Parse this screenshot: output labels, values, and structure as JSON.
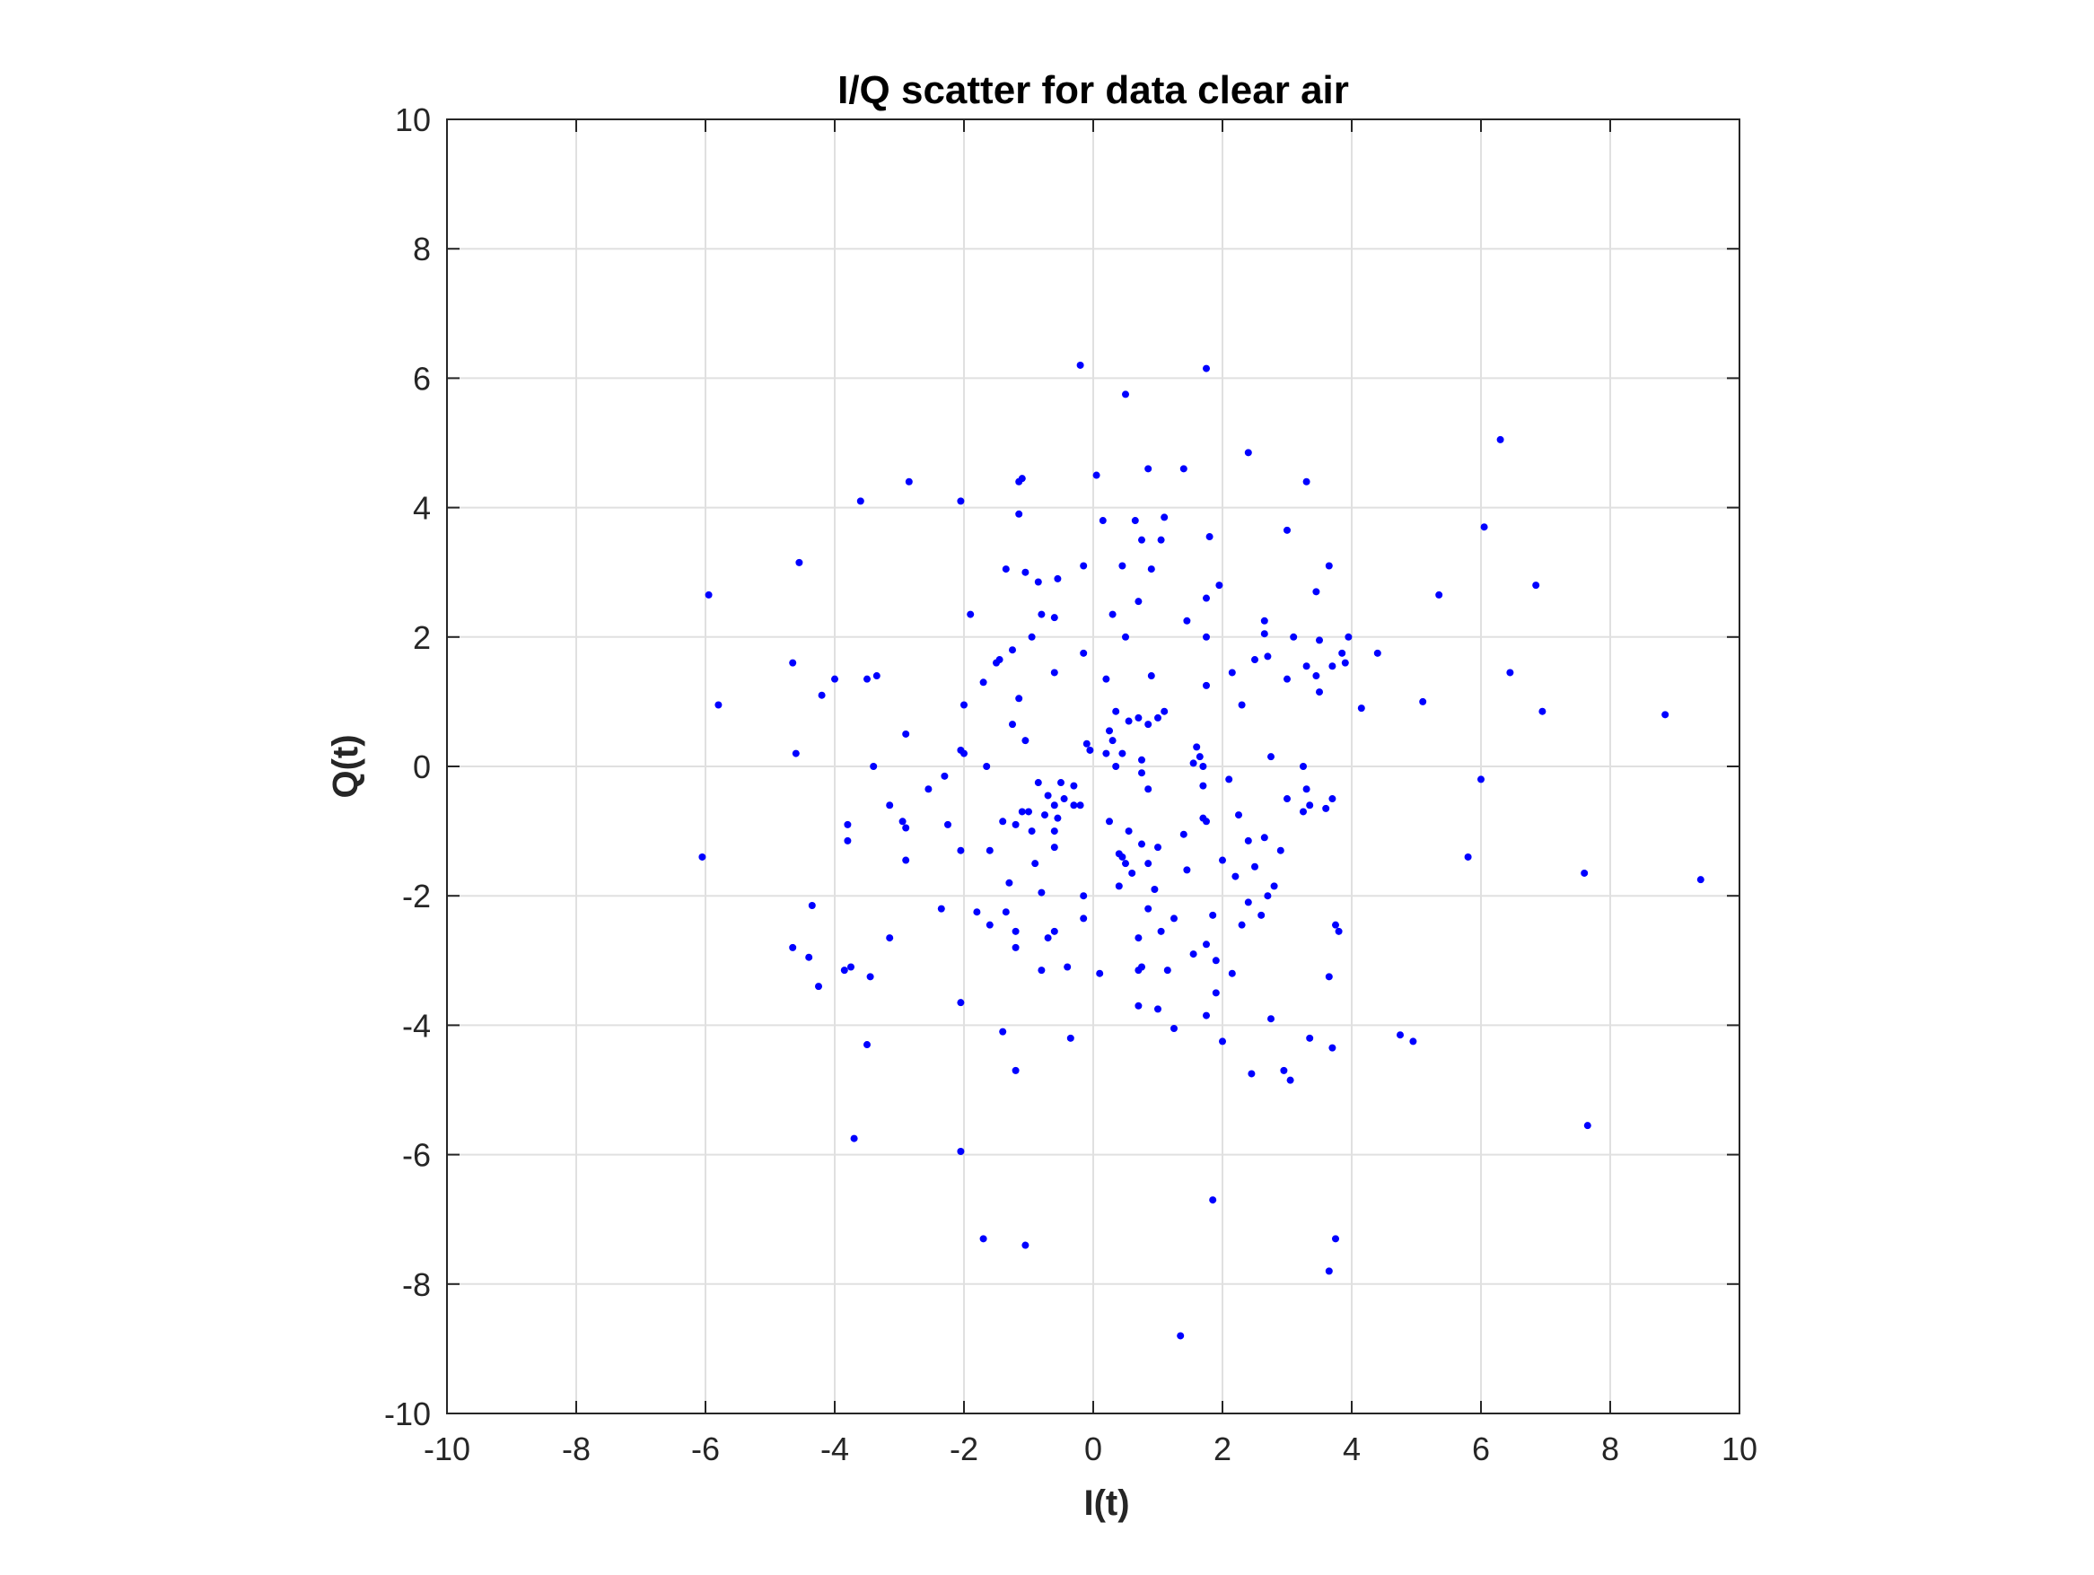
{
  "chart_data": {
    "type": "scatter",
    "title": "I/Q scatter for data clear air",
    "xlabel": "I(t)",
    "ylabel": "Q(t)",
    "xlim": [
      -10,
      10
    ],
    "ylim": [
      -10,
      10
    ],
    "xticks": [
      -10,
      -8,
      -6,
      -4,
      -2,
      0,
      2,
      4,
      6,
      8,
      10
    ],
    "yticks": [
      -10,
      -8,
      -6,
      -4,
      -2,
      0,
      2,
      4,
      6,
      8,
      10
    ],
    "grid": true,
    "legend": "none",
    "marker_color": "#0000ff",
    "grid_color": "#e0e0e0",
    "axis_color": "#262626",
    "series": [
      {
        "points": [
          [
            -0.2,
            6.2
          ],
          [
            1.75,
            6.15
          ],
          [
            0.5,
            5.75
          ],
          [
            6.3,
            5.05
          ],
          [
            2.4,
            4.85
          ],
          [
            -1.1,
            4.45
          ],
          [
            -1.15,
            4.4
          ],
          [
            0.85,
            4.6
          ],
          [
            1.4,
            4.6
          ],
          [
            0.05,
            4.5
          ],
          [
            3.3,
            4.4
          ],
          [
            -2.85,
            4.4
          ],
          [
            -2.05,
            4.1
          ],
          [
            -3.6,
            4.1
          ],
          [
            -1.15,
            3.9
          ],
          [
            0.15,
            3.8
          ],
          [
            0.65,
            3.8
          ],
          [
            1.1,
            3.85
          ],
          [
            6.05,
            3.7
          ],
          [
            3.0,
            3.65
          ],
          [
            1.8,
            3.55
          ],
          [
            0.75,
            3.5
          ],
          [
            1.05,
            3.5
          ],
          [
            -4.55,
            3.15
          ],
          [
            -1.35,
            3.05
          ],
          [
            -1.05,
            3.0
          ],
          [
            -0.55,
            2.9
          ],
          [
            -0.85,
            2.85
          ],
          [
            0.45,
            3.1
          ],
          [
            0.9,
            3.05
          ],
          [
            -0.15,
            3.1
          ],
          [
            3.65,
            3.1
          ],
          [
            1.95,
            2.8
          ],
          [
            6.85,
            2.8
          ],
          [
            -5.95,
            2.65
          ],
          [
            3.45,
            2.7
          ],
          [
            5.35,
            2.65
          ],
          [
            0.7,
            2.55
          ],
          [
            1.75,
            2.6
          ],
          [
            -1.9,
            2.35
          ],
          [
            -0.8,
            2.35
          ],
          [
            -0.6,
            2.3
          ],
          [
            0.3,
            2.35
          ],
          [
            1.45,
            2.25
          ],
          [
            2.65,
            2.25
          ],
          [
            -0.95,
            2.0
          ],
          [
            0.5,
            2.0
          ],
          [
            1.75,
            2.0
          ],
          [
            2.65,
            2.05
          ],
          [
            3.1,
            2.0
          ],
          [
            3.5,
            1.95
          ],
          [
            3.95,
            2.0
          ],
          [
            -1.25,
            1.8
          ],
          [
            -0.15,
            1.75
          ],
          [
            2.7,
            1.7
          ],
          [
            4.4,
            1.75
          ],
          [
            -1.45,
            1.65
          ],
          [
            -1.5,
            1.6
          ],
          [
            2.5,
            1.65
          ],
          [
            3.3,
            1.55
          ],
          [
            3.7,
            1.55
          ],
          [
            3.9,
            1.6
          ],
          [
            3.85,
            1.75
          ],
          [
            -4.65,
            1.6
          ],
          [
            2.15,
            1.45
          ],
          [
            -0.6,
            1.45
          ],
          [
            -3.5,
            1.35
          ],
          [
            -3.35,
            1.4
          ],
          [
            0.9,
            1.4
          ],
          [
            6.45,
            1.45
          ],
          [
            -4.0,
            1.35
          ],
          [
            0.2,
            1.35
          ],
          [
            3.0,
            1.35
          ],
          [
            3.45,
            1.4
          ],
          [
            -1.7,
            1.3
          ],
          [
            1.75,
            1.25
          ],
          [
            3.5,
            1.15
          ],
          [
            -4.2,
            1.1
          ],
          [
            -1.15,
            1.05
          ],
          [
            2.3,
            0.95
          ],
          [
            -5.8,
            0.95
          ],
          [
            -2.0,
            0.95
          ],
          [
            5.1,
            1.0
          ],
          [
            4.15,
            0.9
          ],
          [
            6.95,
            0.85
          ],
          [
            8.85,
            0.8
          ],
          [
            1.1,
            0.85
          ],
          [
            0.35,
            0.85
          ],
          [
            1.0,
            0.75
          ],
          [
            0.55,
            0.7
          ],
          [
            0.7,
            0.75
          ],
          [
            -1.25,
            0.65
          ],
          [
            0.85,
            0.65
          ],
          [
            0.25,
            0.55
          ],
          [
            -2.9,
            0.5
          ],
          [
            0.3,
            0.4
          ],
          [
            -1.05,
            0.4
          ],
          [
            -0.1,
            0.35
          ],
          [
            1.6,
            0.3
          ],
          [
            -2.05,
            0.25
          ],
          [
            -0.05,
            0.25
          ],
          [
            0.2,
            0.2
          ],
          [
            0.45,
            0.2
          ],
          [
            1.65,
            0.15
          ],
          [
            -2.0,
            0.2
          ],
          [
            -4.6,
            0.2
          ],
          [
            2.75,
            0.15
          ],
          [
            1.55,
            0.05
          ],
          [
            0.75,
            0.1
          ],
          [
            1.7,
            0.0
          ],
          [
            -3.4,
            0.0
          ],
          [
            -1.65,
            0.0
          ],
          [
            0.35,
            0.0
          ],
          [
            3.25,
            0.0
          ],
          [
            0.75,
            -0.1
          ],
          [
            -2.3,
            -0.15
          ],
          [
            2.1,
            -0.2
          ],
          [
            6.0,
            -0.2
          ],
          [
            -0.85,
            -0.25
          ],
          [
            -0.5,
            -0.25
          ],
          [
            -0.3,
            -0.3
          ],
          [
            1.7,
            -0.3
          ],
          [
            3.3,
            -0.35
          ],
          [
            -2.55,
            -0.35
          ],
          [
            0.85,
            -0.35
          ],
          [
            -0.7,
            -0.45
          ],
          [
            -0.45,
            -0.5
          ],
          [
            3.0,
            -0.5
          ],
          [
            3.7,
            -0.5
          ],
          [
            -0.6,
            -0.6
          ],
          [
            -0.3,
            -0.6
          ],
          [
            3.35,
            -0.6
          ],
          [
            -3.15,
            -0.6
          ],
          [
            -0.2,
            -0.6
          ],
          [
            3.25,
            -0.7
          ],
          [
            3.6,
            -0.65
          ],
          [
            -1.0,
            -0.7
          ],
          [
            -0.75,
            -0.75
          ],
          [
            -1.1,
            -0.7
          ],
          [
            2.25,
            -0.75
          ],
          [
            -0.55,
            -0.8
          ],
          [
            1.7,
            -0.8
          ],
          [
            1.75,
            -0.85
          ],
          [
            -2.95,
            -0.85
          ],
          [
            -1.4,
            -0.85
          ],
          [
            0.25,
            -0.85
          ],
          [
            -3.8,
            -0.9
          ],
          [
            -2.9,
            -0.95
          ],
          [
            -2.25,
            -0.9
          ],
          [
            -1.2,
            -0.9
          ],
          [
            -0.95,
            -1.0
          ],
          [
            -0.6,
            -1.0
          ],
          [
            0.55,
            -1.0
          ],
          [
            1.4,
            -1.05
          ],
          [
            2.65,
            -1.1
          ],
          [
            2.4,
            -1.15
          ],
          [
            -3.8,
            -1.15
          ],
          [
            0.75,
            -1.2
          ],
          [
            1.0,
            -1.25
          ],
          [
            -2.05,
            -1.3
          ],
          [
            -1.6,
            -1.3
          ],
          [
            -0.6,
            -1.25
          ],
          [
            0.4,
            -1.35
          ],
          [
            2.9,
            -1.3
          ],
          [
            -6.05,
            -1.4
          ],
          [
            -2.9,
            -1.45
          ],
          [
            0.45,
            -1.4
          ],
          [
            2.0,
            -1.45
          ],
          [
            5.8,
            -1.4
          ],
          [
            -0.9,
            -1.5
          ],
          [
            0.5,
            -1.5
          ],
          [
            0.85,
            -1.5
          ],
          [
            2.5,
            -1.55
          ],
          [
            1.45,
            -1.6
          ],
          [
            2.2,
            -1.7
          ],
          [
            0.6,
            -1.65
          ],
          [
            -1.3,
            -1.8
          ],
          [
            7.6,
            -1.65
          ],
          [
            0.4,
            -1.85
          ],
          [
            0.95,
            -1.9
          ],
          [
            2.8,
            -1.85
          ],
          [
            -0.8,
            -1.95
          ],
          [
            2.7,
            -2.0
          ],
          [
            9.4,
            -1.75
          ],
          [
            -0.15,
            -2.0
          ],
          [
            2.4,
            -2.1
          ],
          [
            -4.35,
            -2.15
          ],
          [
            -2.35,
            -2.2
          ],
          [
            -1.8,
            -2.25
          ],
          [
            -1.35,
            -2.25
          ],
          [
            0.85,
            -2.2
          ],
          [
            -0.15,
            -2.35
          ],
          [
            1.25,
            -2.35
          ],
          [
            1.85,
            -2.3
          ],
          [
            2.6,
            -2.3
          ],
          [
            -1.6,
            -2.45
          ],
          [
            2.3,
            -2.45
          ],
          [
            3.75,
            -2.45
          ],
          [
            3.8,
            -2.55
          ],
          [
            -1.2,
            -2.55
          ],
          [
            -0.6,
            -2.55
          ],
          [
            1.05,
            -2.55
          ],
          [
            -0.7,
            -2.65
          ],
          [
            0.7,
            -2.65
          ],
          [
            -3.15,
            -2.65
          ],
          [
            1.75,
            -2.75
          ],
          [
            -1.2,
            -2.8
          ],
          [
            1.55,
            -2.9
          ],
          [
            -4.65,
            -2.8
          ],
          [
            -4.4,
            -2.95
          ],
          [
            1.9,
            -3.0
          ],
          [
            -3.75,
            -3.1
          ],
          [
            -3.85,
            -3.15
          ],
          [
            -0.8,
            -3.15
          ],
          [
            -0.4,
            -3.1
          ],
          [
            0.75,
            -3.1
          ],
          [
            0.7,
            -3.15
          ],
          [
            1.15,
            -3.15
          ],
          [
            2.15,
            -3.2
          ],
          [
            0.1,
            -3.2
          ],
          [
            -3.45,
            -3.25
          ],
          [
            3.65,
            -3.25
          ],
          [
            -4.25,
            -3.4
          ],
          [
            1.9,
            -3.5
          ],
          [
            -2.05,
            -3.65
          ],
          [
            0.7,
            -3.7
          ],
          [
            1.0,
            -3.75
          ],
          [
            1.75,
            -3.85
          ],
          [
            2.75,
            -3.9
          ],
          [
            1.25,
            -4.05
          ],
          [
            -1.4,
            -4.1
          ],
          [
            -0.35,
            -4.2
          ],
          [
            3.35,
            -4.2
          ],
          [
            2.0,
            -4.25
          ],
          [
            4.75,
            -4.15
          ],
          [
            4.95,
            -4.25
          ],
          [
            -3.5,
            -4.3
          ],
          [
            3.7,
            -4.35
          ],
          [
            -1.2,
            -4.7
          ],
          [
            2.95,
            -4.7
          ],
          [
            2.45,
            -4.75
          ],
          [
            3.05,
            -4.85
          ],
          [
            7.65,
            -5.55
          ],
          [
            -3.7,
            -5.75
          ],
          [
            -2.05,
            -5.95
          ],
          [
            1.85,
            -6.7
          ],
          [
            -1.7,
            -7.3
          ],
          [
            3.75,
            -7.3
          ],
          [
            -1.05,
            -7.4
          ],
          [
            3.65,
            -7.8
          ],
          [
            1.35,
            -8.8
          ]
        ]
      }
    ]
  }
}
